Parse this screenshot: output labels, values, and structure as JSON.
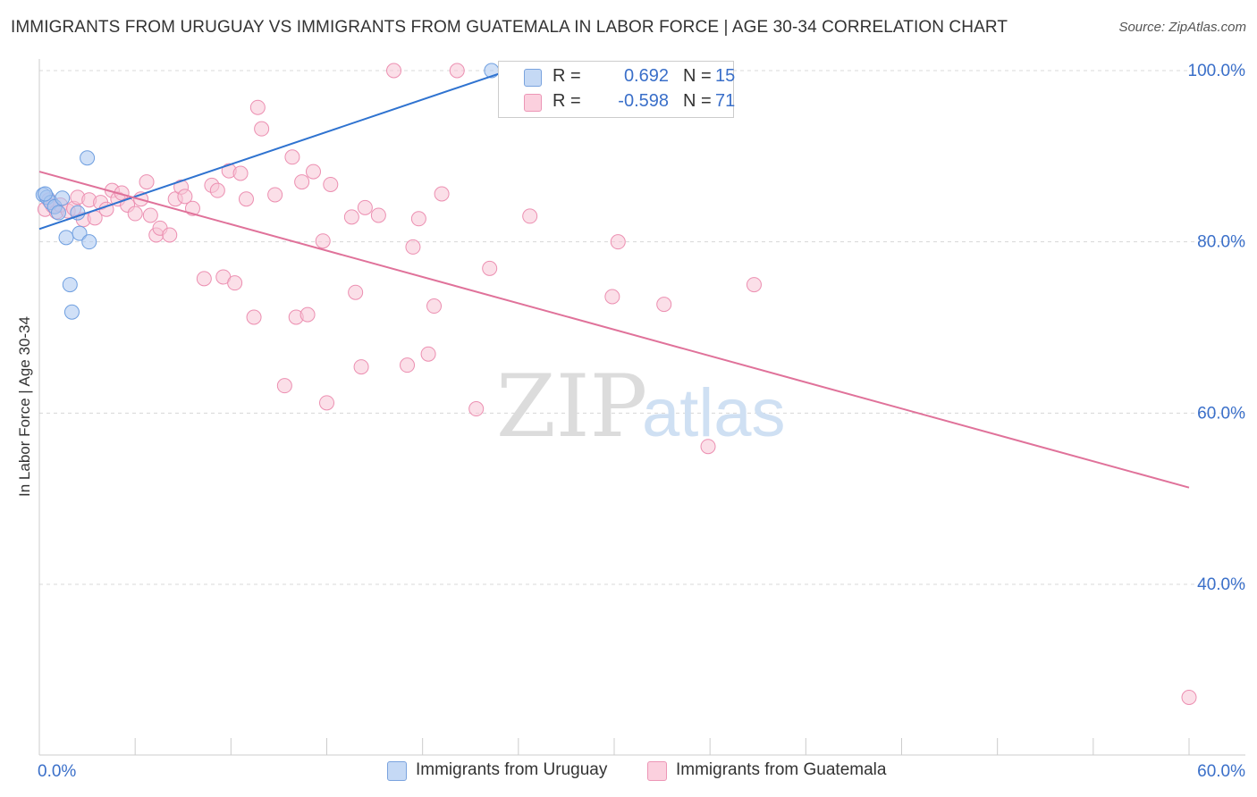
{
  "title": "IMMIGRANTS FROM URUGUAY VS IMMIGRANTS FROM GUATEMALA IN LABOR FORCE | AGE 30-34 CORRELATION CHART",
  "source": "Source: ZipAtlas.com",
  "watermark": {
    "zip": "ZIP",
    "atlas": "atlas"
  },
  "legend": {
    "rows": [
      {
        "r_label": "R =",
        "r_value": "0.692",
        "n_label": "N =",
        "n_value": "15",
        "color": "#a9c7f0",
        "border": "#6f9fe0"
      },
      {
        "r_label": "R =",
        "r_value": "-0.598",
        "n_label": "N =",
        "n_value": "71",
        "color": "#f8c5d6",
        "border": "#ec8fb1"
      }
    ]
  },
  "bottom_legend": [
    {
      "label": "Immigrants from Uruguay",
      "color": "#c5d9f5",
      "border": "#7aa3de"
    },
    {
      "label": "Immigrants from Guatemala",
      "color": "#fbd0de",
      "border": "#ec96b6"
    }
  ],
  "chart_data": {
    "type": "scatter",
    "title": "IMMIGRANTS FROM URUGUAY VS IMMIGRANTS FROM GUATEMALA IN LABOR FORCE | AGE 30-34 CORRELATION CHART",
    "xlabel": "",
    "ylabel": "In Labor Force | Age 30-34",
    "xlim": [
      0,
      60
    ],
    "ylim": [
      20,
      102
    ],
    "x_tick_labels": [
      "0.0%",
      "60.0%"
    ],
    "y_ticks": [
      40,
      60,
      80,
      100
    ],
    "y_tick_labels": [
      "40.0%",
      "60.0%",
      "80.0%",
      "100.0%"
    ],
    "grid": true,
    "series": [
      {
        "name": "Immigrants from Uruguay",
        "color": "#6f9fe0",
        "fill": "#a9c7f0",
        "line_color": "#2f73d0",
        "trend": {
          "x": [
            0.0,
            25.0
          ],
          "y": [
            81.5,
            100.4
          ]
        },
        "points": [
          [
            0.2,
            85.5
          ],
          [
            0.4,
            85.2
          ],
          [
            0.6,
            84.6
          ],
          [
            0.8,
            84.1
          ],
          [
            1.0,
            83.4
          ],
          [
            1.2,
            85.1
          ],
          [
            1.4,
            80.5
          ],
          [
            1.6,
            75.0
          ],
          [
            1.7,
            71.8
          ],
          [
            2.0,
            83.4
          ],
          [
            2.1,
            81.0
          ],
          [
            2.5,
            89.8
          ],
          [
            2.6,
            80.0
          ],
          [
            23.6,
            100.0
          ],
          [
            0.3,
            85.6
          ]
        ]
      },
      {
        "name": "Immigrants from Guatemala",
        "color": "#ec8fb1",
        "fill": "#f8c5d6",
        "line_color": "#e0729a",
        "trend": {
          "x": [
            0.0,
            60.0
          ],
          "y": [
            88.2,
            51.3
          ]
        },
        "points": [
          [
            0.3,
            83.8
          ],
          [
            0.5,
            84.9
          ],
          [
            0.7,
            84.2
          ],
          [
            0.9,
            83.5
          ],
          [
            1.1,
            84.3
          ],
          [
            1.5,
            83.6
          ],
          [
            1.8,
            83.9
          ],
          [
            2.0,
            85.2
          ],
          [
            2.3,
            82.6
          ],
          [
            2.6,
            84.9
          ],
          [
            2.9,
            82.8
          ],
          [
            3.2,
            84.6
          ],
          [
            3.5,
            83.8
          ],
          [
            3.8,
            86.0
          ],
          [
            4.1,
            85.0
          ],
          [
            4.3,
            85.7
          ],
          [
            4.6,
            84.3
          ],
          [
            5.0,
            83.3
          ],
          [
            5.3,
            85.0
          ],
          [
            5.6,
            87.0
          ],
          [
            5.8,
            83.1
          ],
          [
            6.1,
            80.8
          ],
          [
            6.3,
            81.6
          ],
          [
            6.8,
            80.8
          ],
          [
            7.1,
            85.0
          ],
          [
            7.4,
            86.4
          ],
          [
            7.6,
            85.3
          ],
          [
            8.0,
            83.9
          ],
          [
            8.6,
            75.7
          ],
          [
            9.0,
            86.6
          ],
          [
            9.3,
            86.0
          ],
          [
            9.6,
            75.9
          ],
          [
            9.9,
            88.3
          ],
          [
            10.2,
            75.2
          ],
          [
            10.5,
            88.0
          ],
          [
            10.8,
            85.0
          ],
          [
            11.2,
            71.2
          ],
          [
            11.4,
            95.7
          ],
          [
            11.6,
            93.2
          ],
          [
            12.3,
            85.5
          ],
          [
            12.8,
            63.2
          ],
          [
            13.2,
            89.9
          ],
          [
            13.4,
            71.2
          ],
          [
            13.7,
            87.0
          ],
          [
            14.0,
            71.5
          ],
          [
            14.3,
            88.2
          ],
          [
            14.8,
            80.1
          ],
          [
            15.0,
            61.2
          ],
          [
            15.2,
            86.7
          ],
          [
            16.3,
            82.9
          ],
          [
            16.5,
            74.1
          ],
          [
            16.8,
            65.4
          ],
          [
            17.0,
            84.0
          ],
          [
            17.7,
            83.1
          ],
          [
            18.5,
            100.0
          ],
          [
            19.2,
            65.6
          ],
          [
            19.5,
            79.4
          ],
          [
            19.8,
            82.7
          ],
          [
            20.3,
            66.9
          ],
          [
            20.6,
            72.5
          ],
          [
            21.0,
            85.6
          ],
          [
            22.8,
            60.5
          ],
          [
            23.5,
            76.9
          ],
          [
            25.6,
            83.0
          ],
          [
            29.9,
            73.6
          ],
          [
            30.2,
            80.0
          ],
          [
            32.6,
            72.7
          ],
          [
            34.9,
            56.1
          ],
          [
            37.3,
            75.0
          ],
          [
            60.0,
            26.8
          ],
          [
            21.8,
            100.0
          ]
        ]
      }
    ]
  }
}
